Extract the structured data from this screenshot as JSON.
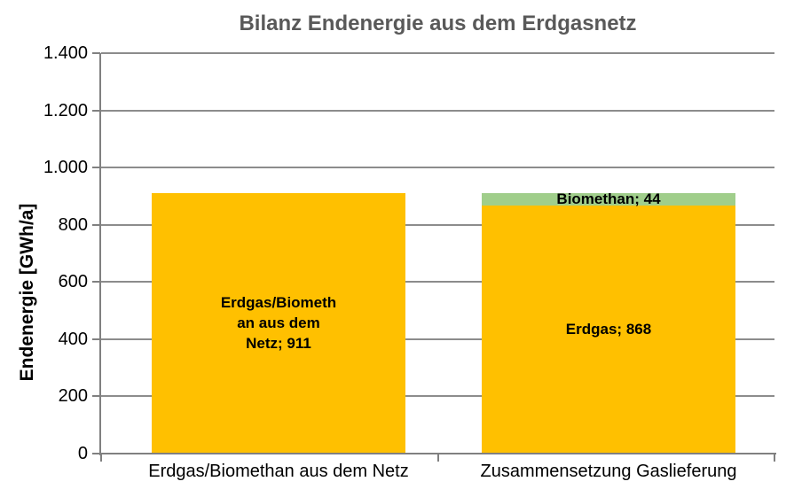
{
  "chart_data": {
    "type": "bar",
    "stacked": true,
    "title": "Bilanz Endenergie aus dem Erdgasnetz",
    "ylabel": "Endenergie [GWh/a]",
    "xlabel": "",
    "ylim": [
      0,
      1400
    ],
    "ytick_interval": 200,
    "ytick_labels": [
      "0",
      "200",
      "400",
      "600",
      "800",
      "1.000",
      "1.200",
      "1.400"
    ],
    "grid": true,
    "legend": "none",
    "categories": [
      "Erdgas/Biomethan aus dem Netz",
      "Zusammensetzung Gaslieferung"
    ],
    "bars": [
      {
        "category": "Erdgas/Biomethan aus dem Netz",
        "total": 911,
        "segments": [
          {
            "name": "Erdgas/Biomethan aus dem Netz",
            "value": 911,
            "color": "#FFC000",
            "label_lines": [
              "Erdgas/Biometh",
              "an aus dem",
              "Netz; 911"
            ]
          }
        ]
      },
      {
        "category": "Zusammensetzung Gaslieferung",
        "total": 912,
        "segments": [
          {
            "name": "Erdgas",
            "value": 868,
            "color": "#FFC000",
            "label_lines": [
              "Erdgas; 868"
            ]
          },
          {
            "name": "Biomethan",
            "value": 44,
            "color": "#A0CE8B",
            "label_lines": [
              "Biomethan; 44"
            ]
          }
        ]
      }
    ],
    "colors": {
      "erdgas": "#FFC000",
      "biomethan": "#A0CE8B",
      "title_text": "#595959",
      "axis": "#808080",
      "gridline": "#8C8C8C",
      "label_text": "#000000",
      "background": "#FFFFFF"
    }
  }
}
